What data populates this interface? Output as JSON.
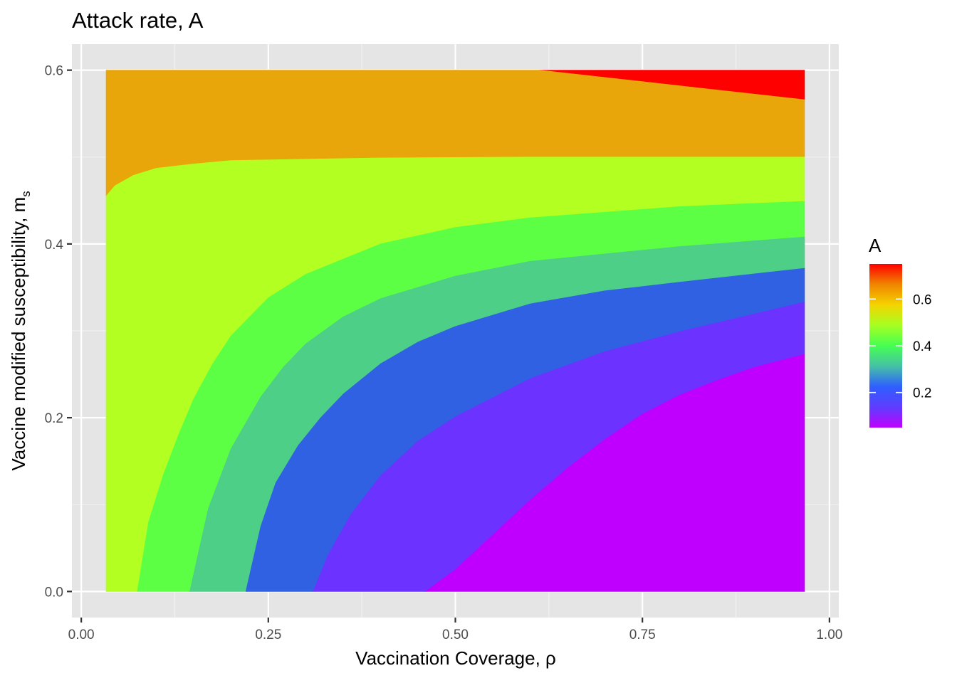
{
  "chart_data": {
    "type": "filled-contour",
    "title": "Attack rate, A",
    "xlabel": "Vaccination Coverage,  ρ",
    "ylabel_main": "Vaccine modified susceptibility, m",
    "ylabel_sub": "s",
    "xlim": [
      -0.0125,
      1.0125
    ],
    "ylim": [
      -0.03,
      0.63
    ],
    "x_ticks": [
      0.0,
      0.25,
      0.5,
      0.75,
      1.0
    ],
    "x_tick_labels": [
      "0.00",
      "0.25",
      "0.50",
      "0.75",
      "1.00"
    ],
    "y_ticks": [
      0.0,
      0.2,
      0.4,
      0.6
    ],
    "y_tick_labels": [
      "0.0",
      "0.2",
      "0.4",
      "0.6"
    ],
    "data_extent": {
      "x": [
        0.0333,
        0.9667
      ],
      "y": [
        0.0,
        0.6
      ]
    },
    "panel_background": "#e5e5e5",
    "grid": true,
    "legend": {
      "title": "A",
      "position": "right",
      "range": [
        0.05,
        0.75
      ],
      "breaks": [
        0.2,
        0.4,
        0.6
      ],
      "break_labels": [
        "0.2",
        "0.4",
        "0.6"
      ],
      "gradient_colors": [
        "#bf00ff",
        "#5f3dff",
        "#2e5fff",
        "#45c1a6",
        "#45ff52",
        "#a6ff21",
        "#f4d400",
        "#f08500",
        "#ff0000"
      ]
    },
    "bands": [
      {
        "level": [
          0.7,
          0.8
        ],
        "color": "#ff0000",
        "x": [
          0.612,
          0.9667,
          0.9667
        ],
        "y": [
          0.6,
          0.6,
          0.566
        ]
      },
      {
        "level": [
          0.6,
          0.7
        ],
        "color": "#e8a60a",
        "x": [
          0.0333,
          0.612,
          0.9667,
          0.9667,
          0.8,
          0.6,
          0.4,
          0.2,
          0.15,
          0.1,
          0.07,
          0.045,
          0.0333
        ],
        "y": [
          0.6,
          0.6,
          0.566,
          0.5,
          0.5,
          0.5,
          0.499,
          0.496,
          0.492,
          0.487,
          0.479,
          0.467,
          0.455
        ]
      },
      {
        "level": [
          0.5,
          0.6
        ],
        "color": "#b3ff21",
        "x": [
          0.0333,
          0.045,
          0.07,
          0.1,
          0.15,
          0.2,
          0.4,
          0.6,
          0.8,
          0.9667,
          0.9667,
          0.8,
          0.6,
          0.5,
          0.4,
          0.3,
          0.25,
          0.2,
          0.175,
          0.15,
          0.13,
          0.11,
          0.09,
          0.075,
          0.0333
        ],
        "y": [
          0.455,
          0.467,
          0.479,
          0.487,
          0.492,
          0.496,
          0.499,
          0.5,
          0.5,
          0.5,
          0.449,
          0.443,
          0.43,
          0.419,
          0.4,
          0.365,
          0.338,
          0.294,
          0.261,
          0.221,
          0.18,
          0.135,
          0.08,
          0.0,
          0.0
        ]
      },
      {
        "level": [
          0.4,
          0.5
        ],
        "color": "#5dff45",
        "x": [
          0.075,
          0.09,
          0.11,
          0.13,
          0.15,
          0.175,
          0.2,
          0.25,
          0.3,
          0.4,
          0.5,
          0.6,
          0.8,
          0.9667,
          0.9667,
          0.8,
          0.6,
          0.5,
          0.4,
          0.35,
          0.3,
          0.27,
          0.24,
          0.2,
          0.17,
          0.145
        ],
        "y": [
          0.0,
          0.08,
          0.135,
          0.18,
          0.221,
          0.261,
          0.294,
          0.338,
          0.365,
          0.4,
          0.419,
          0.43,
          0.443,
          0.449,
          0.408,
          0.397,
          0.38,
          0.363,
          0.337,
          0.316,
          0.285,
          0.258,
          0.224,
          0.164,
          0.096,
          0.0
        ]
      },
      {
        "level": [
          0.3,
          0.4
        ],
        "color": "#4dcf88",
        "x": [
          0.145,
          0.17,
          0.2,
          0.24,
          0.27,
          0.3,
          0.35,
          0.4,
          0.5,
          0.6,
          0.8,
          0.9667,
          0.9667,
          0.8,
          0.7,
          0.6,
          0.5,
          0.45,
          0.4,
          0.35,
          0.32,
          0.29,
          0.26,
          0.24,
          0.22
        ],
        "y": [
          0.0,
          0.096,
          0.164,
          0.224,
          0.258,
          0.285,
          0.316,
          0.337,
          0.363,
          0.38,
          0.397,
          0.408,
          0.372,
          0.356,
          0.346,
          0.331,
          0.305,
          0.287,
          0.262,
          0.227,
          0.2,
          0.168,
          0.125,
          0.075,
          0.0
        ]
      },
      {
        "level": [
          0.2,
          0.3
        ],
        "color": "#3061e3",
        "x": [
          0.22,
          0.24,
          0.26,
          0.29,
          0.32,
          0.35,
          0.4,
          0.45,
          0.5,
          0.6,
          0.7,
          0.8,
          0.9667,
          0.9667,
          0.8,
          0.7,
          0.6,
          0.5,
          0.45,
          0.4,
          0.36,
          0.33,
          0.31
        ],
        "y": [
          0.0,
          0.075,
          0.125,
          0.168,
          0.2,
          0.227,
          0.262,
          0.287,
          0.305,
          0.331,
          0.346,
          0.356,
          0.372,
          0.333,
          0.299,
          0.276,
          0.245,
          0.201,
          0.173,
          0.133,
          0.088,
          0.042,
          0.0
        ]
      },
      {
        "level": [
          0.1,
          0.2
        ],
        "color": "#6c32ff",
        "x": [
          0.31,
          0.33,
          0.36,
          0.4,
          0.45,
          0.5,
          0.6,
          0.7,
          0.8,
          0.9667,
          0.9667,
          0.9,
          0.85,
          0.8,
          0.75,
          0.7,
          0.65,
          0.6,
          0.55,
          0.5,
          0.46
        ],
        "y": [
          0.0,
          0.042,
          0.088,
          0.133,
          0.173,
          0.201,
          0.245,
          0.276,
          0.299,
          0.333,
          0.273,
          0.258,
          0.243,
          0.226,
          0.204,
          0.175,
          0.142,
          0.105,
          0.065,
          0.025,
          0.0
        ]
      },
      {
        "level": [
          0.0,
          0.1
        ],
        "color": "#bf00ff",
        "x": [
          0.46,
          0.5,
          0.55,
          0.6,
          0.65,
          0.7,
          0.75,
          0.8,
          0.85,
          0.9,
          0.9667,
          0.9667
        ],
        "y": [
          0.0,
          0.025,
          0.065,
          0.105,
          0.142,
          0.175,
          0.204,
          0.226,
          0.243,
          0.258,
          0.273,
          0.0
        ]
      }
    ]
  }
}
